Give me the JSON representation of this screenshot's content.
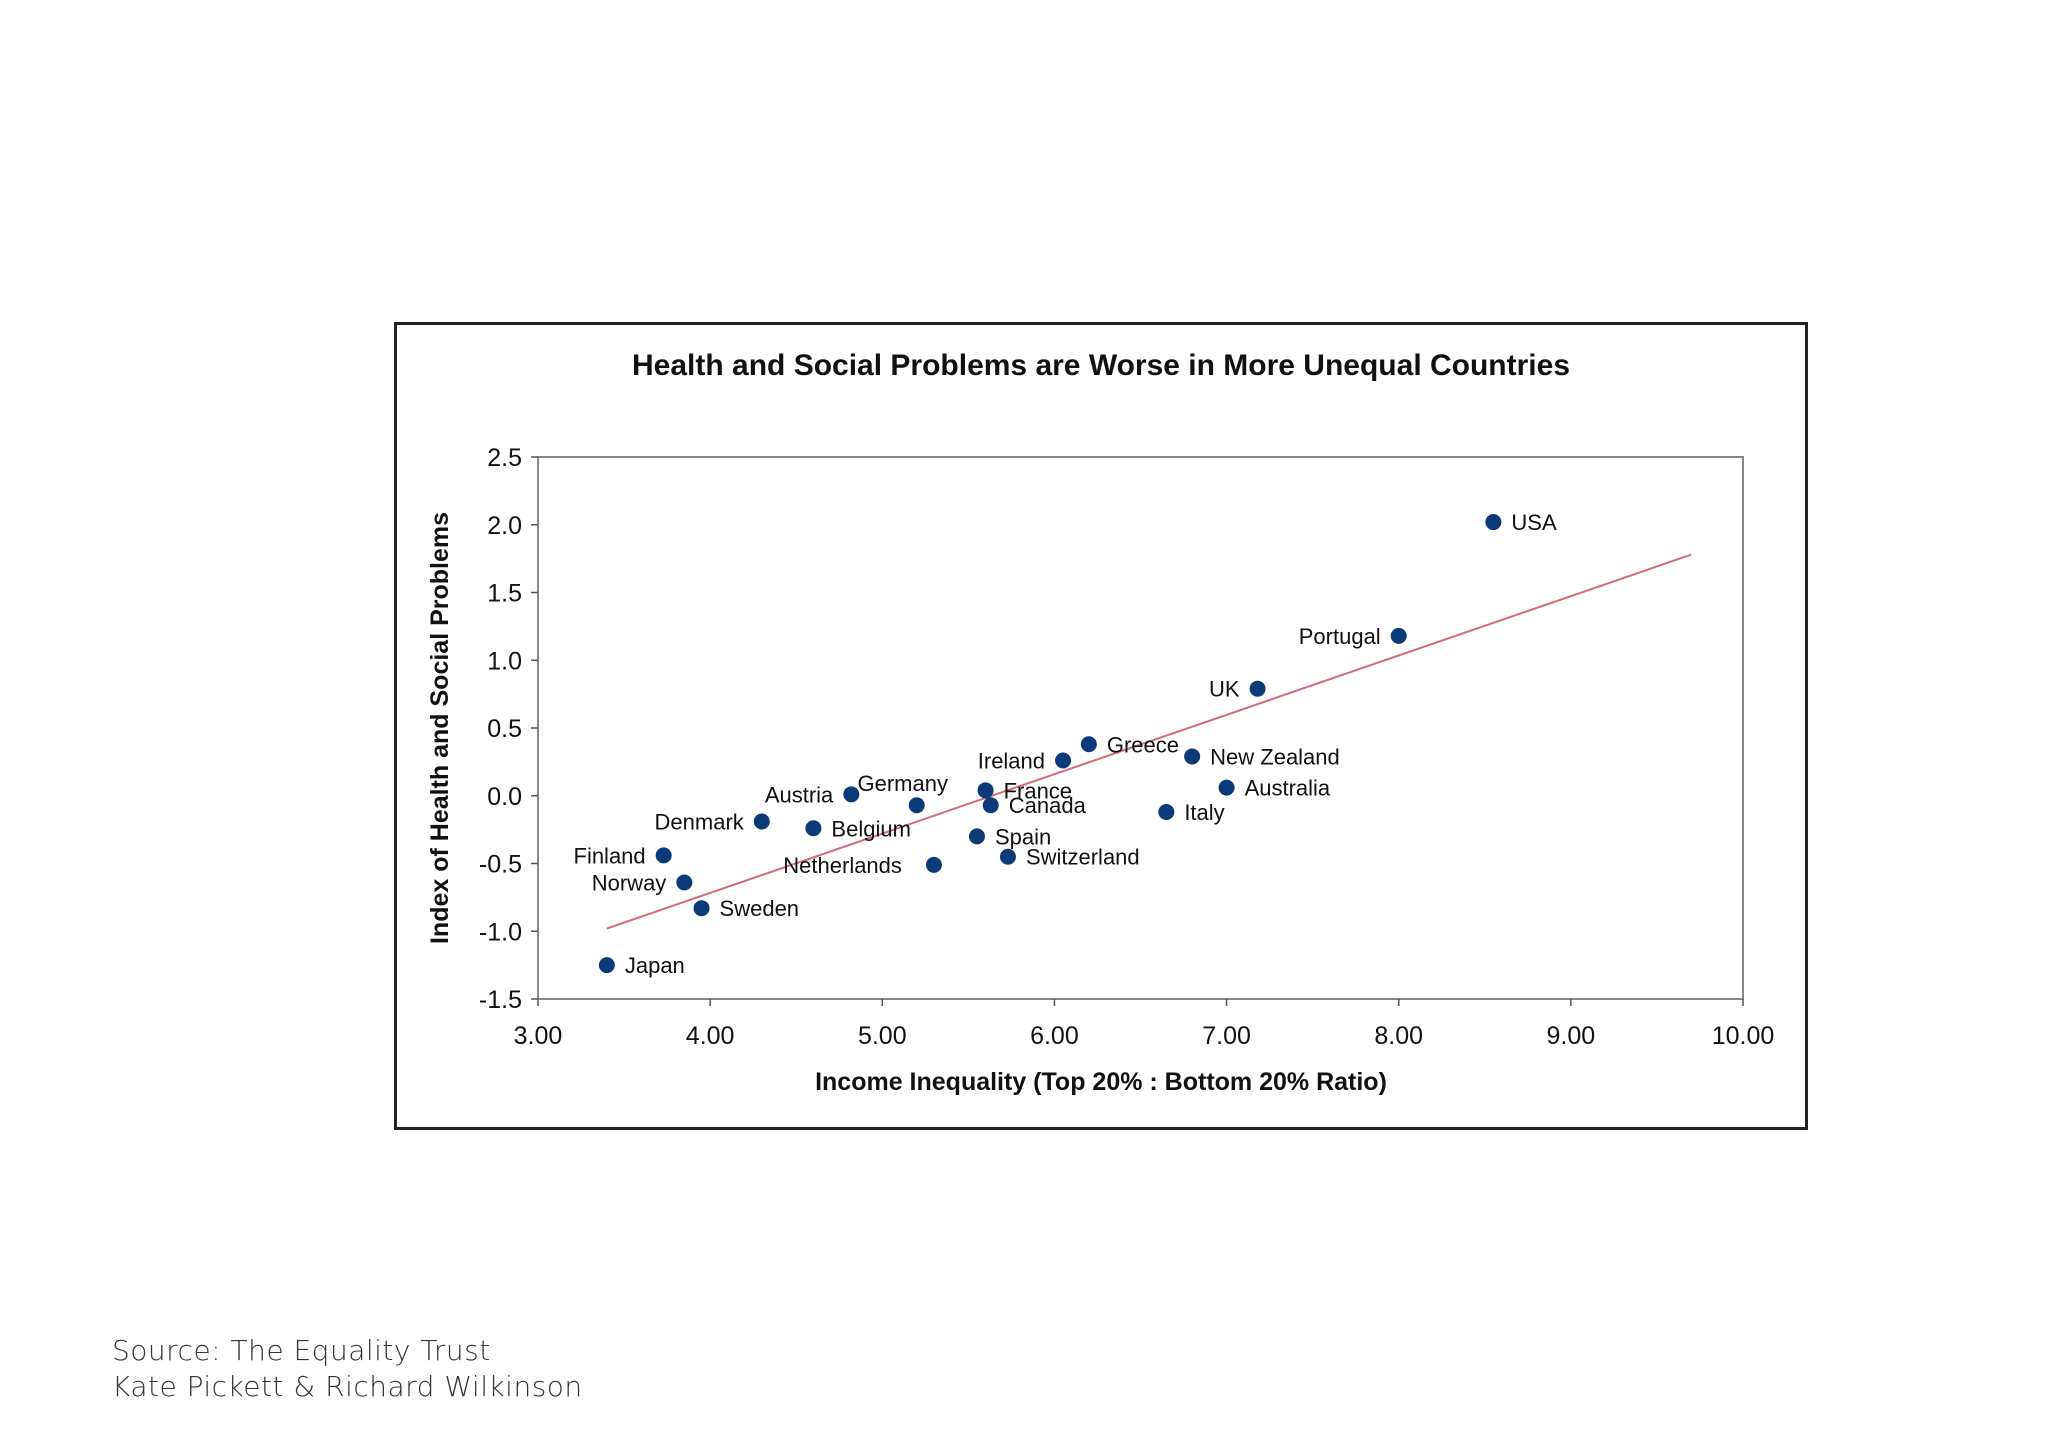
{
  "chart_data": {
    "type": "scatter",
    "title": "Health and Social Problems are Worse in More Unequal Countries",
    "xlabel": "Income Inequality (Top 20% : Bottom 20% Ratio)",
    "ylabel": "Index of Health and Social Problems",
    "xlim": [
      3.0,
      10.0
    ],
    "ylim": [
      -1.5,
      2.5
    ],
    "xticks": [
      "3.00",
      "4.00",
      "5.00",
      "6.00",
      "7.00",
      "8.00",
      "9.00",
      "10.00"
    ],
    "yticks": [
      "2.5",
      "2.0",
      "1.5",
      "1.0",
      "0.5",
      "0.0",
      "-0.5",
      "-1.0",
      "-1.5"
    ],
    "grid": false,
    "point_color": "#0b3a78",
    "trend_color": "#d46a7a",
    "trendline": {
      "x": [
        3.4,
        9.7
      ],
      "y": [
        -0.98,
        1.78
      ]
    },
    "points": [
      {
        "label": "USA",
        "x": 8.55,
        "y": 2.02
      },
      {
        "label": "Portugal",
        "x": 8.0,
        "y": 1.18
      },
      {
        "label": "UK",
        "x": 7.18,
        "y": 0.79
      },
      {
        "label": "Greece",
        "x": 6.2,
        "y": 0.38
      },
      {
        "label": "New Zealand",
        "x": 6.8,
        "y": 0.29
      },
      {
        "label": "Ireland",
        "x": 6.05,
        "y": 0.26
      },
      {
        "label": "Australia",
        "x": 7.0,
        "y": 0.06
      },
      {
        "label": "Austria",
        "x": 4.82,
        "y": 0.01
      },
      {
        "label": "France",
        "x": 5.6,
        "y": 0.04
      },
      {
        "label": "Germany",
        "x": 5.2,
        "y": -0.07
      },
      {
        "label": "Canada",
        "x": 5.63,
        "y": -0.07
      },
      {
        "label": "Italy",
        "x": 6.65,
        "y": -0.12
      },
      {
        "label": "Denmark",
        "x": 4.3,
        "y": -0.19
      },
      {
        "label": "Belgium",
        "x": 4.6,
        "y": -0.24
      },
      {
        "label": "Spain",
        "x": 5.55,
        "y": -0.3
      },
      {
        "label": "Finland",
        "x": 3.73,
        "y": -0.44
      },
      {
        "label": "Switzerland",
        "x": 5.73,
        "y": -0.45
      },
      {
        "label": "Netherlands",
        "x": 5.3,
        "y": -0.51
      },
      {
        "label": "Norway",
        "x": 3.85,
        "y": -0.64
      },
      {
        "label": "Sweden",
        "x": 3.95,
        "y": -0.83
      },
      {
        "label": "Japan",
        "x": 3.4,
        "y": -1.25
      }
    ]
  },
  "source": {
    "line1": "Source: The Equality Trust",
    "line2": "Kate Pickett & Richard Wilkinson"
  }
}
